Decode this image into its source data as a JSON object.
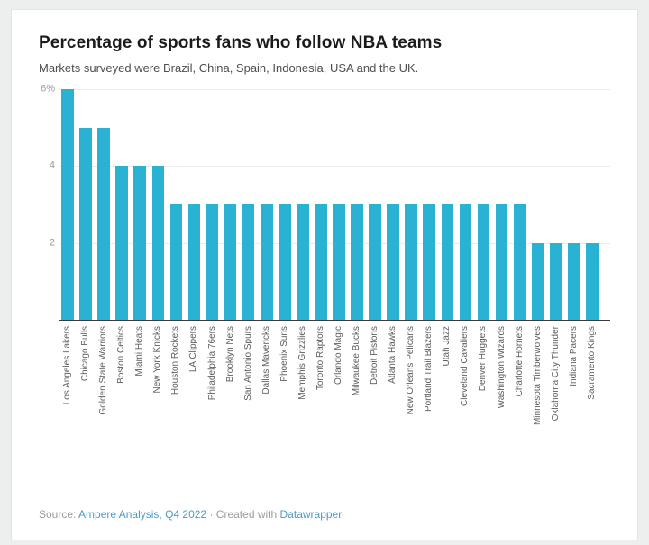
{
  "header": {
    "title": "Percentage of sports fans who follow NBA teams",
    "subtitle": "Markets surveyed were Brazil, China, Spain, Indonesia, USA and the UK."
  },
  "chart_data": {
    "type": "bar",
    "title": "Percentage of sports fans who follow NBA teams",
    "subtitle": "Markets surveyed were Brazil, China, Spain, Indonesia, USA and the UK.",
    "xlabel": "",
    "ylabel": "",
    "ylim": [
      0,
      6
    ],
    "grid": true,
    "legend": "none",
    "bar_color": "#29b2d2",
    "yticks": [
      {
        "value": 2,
        "label": "2"
      },
      {
        "value": 4,
        "label": "4"
      },
      {
        "value": 6,
        "label": "6%"
      }
    ],
    "categories": [
      "Los Angeles Lakers",
      "Chicago Bulls",
      "Golden State Warriors",
      "Boston Celtics",
      "Miami Heats",
      "New York Knicks",
      "Houston Rockets",
      "LA Clippers",
      "Philadelphia 76ers",
      "Brooklyn Nets",
      "San Antonio Spurs",
      "Dallas Mavericks",
      "Phoenix Suns",
      "Memphis Grizzlies",
      "Toronto Raptors",
      "Orlando Magic",
      "Milwaukee Bucks",
      "Detroit Pistons",
      "Atlanta Hawks",
      "New Orleans Pelicans",
      "Portland Trail Blazers",
      "Utah Jazz",
      "Cleveland Cavaliers",
      "Denver Huggets",
      "Washington Wizards",
      "Charlotte Hornets",
      "Minnesota Timberwolves",
      "Oklahoma City Thunder",
      "Indiana Pacers",
      "Sacramento Kings"
    ],
    "values": [
      6,
      5,
      5,
      4,
      4,
      4,
      3,
      3,
      3,
      3,
      3,
      3,
      3,
      3,
      3,
      3,
      3,
      3,
      3,
      3,
      3,
      3,
      3,
      3,
      3,
      3,
      2,
      2,
      2,
      2
    ]
  },
  "footer": {
    "source_prefix": "Source:",
    "source_link": "Ampere Analysis, Q4 2022",
    "separator": "·",
    "created_with": "Created with",
    "tool_link": "Datawrapper"
  },
  "colors": {
    "bar": "#29b2d2",
    "link": "#4a9bc9",
    "footer_text": "#9b9b9b",
    "gridline": "#ebebeb",
    "baseline": "#3b3b3b"
  }
}
